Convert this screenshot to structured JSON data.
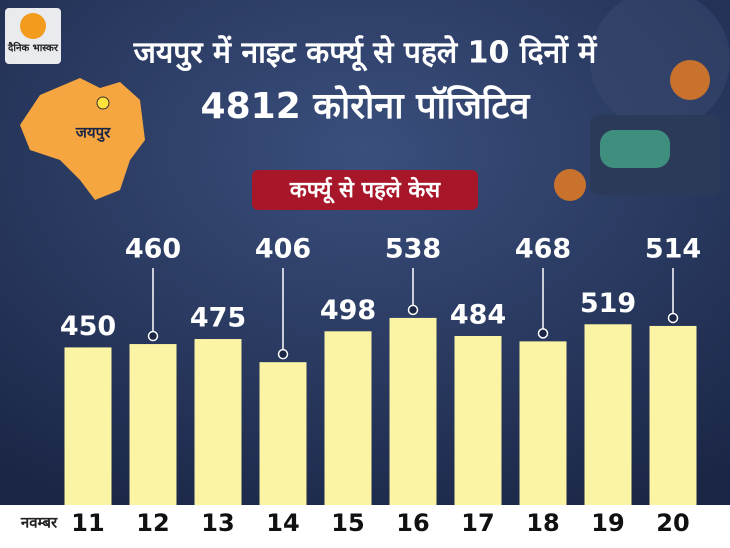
{
  "chart_data": {
    "type": "bar",
    "logo": "दैनिक भास्कर",
    "title": "जयपुर में नाइट कर्फ्यू से पहले 10 दिनों में",
    "subtitle": "4812 कोरोना पॉजिटिव",
    "badge": "कर्फ्यू से पहले केस",
    "map_label": "जयपुर",
    "x_label": "नवम्बर",
    "categories": [
      "11",
      "12",
      "13",
      "14",
      "15",
      "16",
      "17",
      "18",
      "19",
      "20"
    ],
    "values": [
      450,
      460,
      475,
      406,
      498,
      538,
      484,
      468,
      519,
      514
    ],
    "color": "#fbf4a4",
    "ylim": [
      -20,
      1000
    ]
  }
}
